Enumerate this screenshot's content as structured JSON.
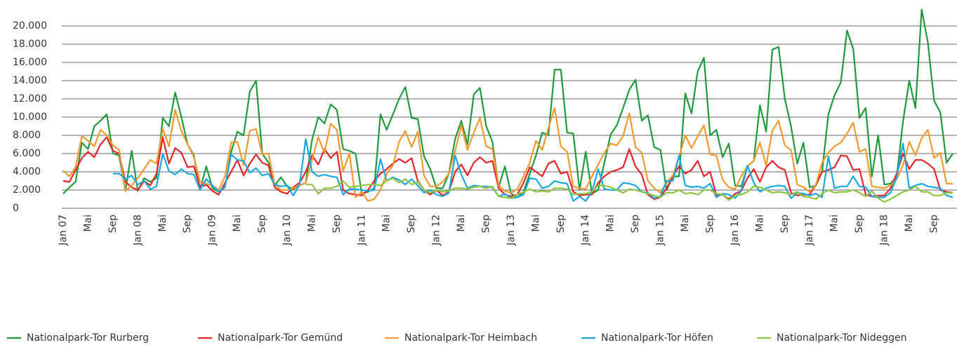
{
  "chart_data": {
    "type": "line",
    "categories": [
      "Jan 07",
      null,
      null,
      null,
      "Mai",
      null,
      null,
      null,
      "Sep",
      null,
      null,
      null,
      "Jan 08",
      null,
      null,
      null,
      "Mai",
      null,
      null,
      null,
      "Sep",
      null,
      null,
      null,
      "Jan 09",
      null,
      null,
      null,
      "Mai",
      null,
      null,
      null,
      "Sep",
      null,
      null,
      null,
      "Jan 10",
      null,
      null,
      null,
      "Mai",
      null,
      null,
      null,
      "Sep",
      null,
      null,
      null,
      "Jan 11",
      null,
      null,
      null,
      "Mai",
      null,
      null,
      null,
      "Sep",
      null,
      null,
      null,
      "Jan 12",
      null,
      null,
      null,
      "Mai",
      null,
      null,
      null,
      "Sep",
      null,
      null,
      null,
      "Jan 13",
      null,
      null,
      null,
      "Mai",
      null,
      null,
      null,
      "Sep",
      null,
      null,
      null,
      "Jan 14",
      null,
      null,
      null,
      "Mai",
      null,
      null,
      null,
      "Sep",
      null,
      null,
      null,
      "Jan 15",
      null,
      null,
      null,
      "Mai",
      null,
      null,
      null,
      "Sep",
      null,
      null,
      null,
      "Jan 16",
      null,
      null,
      null,
      "Mai",
      null,
      null,
      null,
      "Sep",
      null,
      null,
      null,
      "Jan 17",
      null,
      null,
      null,
      "Mai",
      null,
      null,
      null,
      "Sep",
      null,
      null,
      null,
      "Jan 18",
      null,
      null,
      null,
      "Mai",
      null,
      null,
      null,
      "Sep",
      null,
      null,
      null
    ],
    "series": [
      {
        "name": "Nationalpark-Tor Rurberg",
        "color": "#1f9a3e",
        "values": [
          1600,
          2300,
          2900,
          7200,
          6500,
          9000,
          9600,
          10300,
          6000,
          5800,
          1900,
          6300,
          1900,
          3300,
          2900,
          3300,
          9900,
          9000,
          12700,
          10000,
          7000,
          5800,
          2000,
          4600,
          2200,
          1800,
          2300,
          6200,
          8400,
          8000,
          12800,
          14000,
          6000,
          5000,
          2500,
          3400,
          2400,
          2100,
          2500,
          2800,
          7500,
          10000,
          9300,
          11400,
          10800,
          6500,
          6300,
          6000,
          1600,
          1800,
          2200,
          10300,
          8600,
          10300,
          12000,
          13300,
          9900,
          9800,
          5700,
          4300,
          2200,
          2200,
          3800,
          7600,
          9600,
          7000,
          12500,
          13200,
          9000,
          7300,
          2300,
          4600,
          1600,
          1200,
          1800,
          3800,
          5800,
          8300,
          8000,
          15200,
          15200,
          8300,
          8200,
          2000,
          6200,
          1600,
          2000,
          5000,
          8100,
          9100,
          11000,
          13000,
          14100,
          9600,
          10200,
          6700,
          6400,
          2000,
          3500,
          3500,
          12600,
          10400,
          15000,
          16500,
          8000,
          8600,
          5600,
          7100,
          2500,
          2400,
          4600,
          5200,
          11300,
          8400,
          17400,
          17700,
          12000,
          9000,
          4900,
          7200,
          2300,
          2500,
          4000,
          10300,
          12400,
          13800,
          19500,
          17500,
          9900,
          11000,
          3500,
          8000,
          2600,
          2700,
          3500,
          9500,
          14000,
          11000,
          21800,
          18200,
          11800,
          10500,
          5000,
          6000
        ]
      },
      {
        "name": "Nationalpark-Tor Gemünd",
        "color": "#e3262b",
        "values": [
          3000,
          2900,
          4200,
          5500,
          6200,
          5600,
          7000,
          7800,
          6300,
          6000,
          2900,
          2300,
          2000,
          3000,
          2500,
          3800,
          7800,
          4900,
          6600,
          6100,
          4500,
          4600,
          2300,
          2600,
          1900,
          1500,
          2800,
          4000,
          5300,
          3600,
          4900,
          5900,
          5000,
          4700,
          2300,
          1800,
          1600,
          2300,
          2800,
          4000,
          5800,
          4800,
          6500,
          5500,
          6200,
          2000,
          1600,
          1500,
          1400,
          2000,
          3000,
          3800,
          4300,
          4900,
          5400,
          5000,
          5500,
          3000,
          2000,
          1500,
          2000,
          1400,
          1800,
          4000,
          4800,
          3600,
          5000,
          5600,
          5000,
          5200,
          2200,
          1500,
          1300,
          1500,
          2800,
          4500,
          4000,
          3500,
          4900,
          5200,
          3800,
          4000,
          1800,
          1400,
          1500,
          1500,
          2800,
          3500,
          4000,
          4200,
          4500,
          6500,
          4600,
          3700,
          1500,
          1000,
          1200,
          2200,
          3500,
          4600,
          3800,
          4200,
          5200,
          3500,
          4000,
          1400,
          1500,
          1000,
          1600,
          1900,
          3300,
          4300,
          2900,
          4500,
          5200,
          4500,
          4200,
          1700,
          1400,
          1500,
          1500,
          2600,
          4000,
          4200,
          4500,
          5800,
          5700,
          4200,
          4300,
          1500,
          1300,
          1400,
          1400,
          2200,
          3800,
          6000,
          4300,
          5300,
          5300,
          4900,
          4300,
          2000,
          1800,
          1700
        ]
      },
      {
        "name": "Nationalpark-Tor Heimbach",
        "color": "#f39a2e",
        "values": [
          4100,
          3500,
          4500,
          7900,
          7400,
          6800,
          8600,
          8000,
          6900,
          6400,
          1900,
          2500,
          3300,
          4300,
          5300,
          4900,
          8700,
          6800,
          10800,
          8500,
          7000,
          5600,
          2900,
          2700,
          2500,
          2000,
          3500,
          7200,
          7300,
          4700,
          8500,
          8700,
          5900,
          6000,
          2600,
          2000,
          2000,
          2200,
          2500,
          2800,
          5300,
          7800,
          6100,
          9300,
          8600,
          4100,
          6000,
          1200,
          1800,
          800,
          1000,
          2000,
          3800,
          4700,
          7300,
          8500,
          6700,
          8400,
          3600,
          2400,
          2400,
          2900,
          3800,
          6300,
          9100,
          6400,
          8300,
          9900,
          6800,
          6500,
          2500,
          1900,
          1700,
          2100,
          3500,
          5000,
          7400,
          6400,
          8800,
          11000,
          6800,
          6200,
          2400,
          2200,
          2100,
          3500,
          4800,
          6100,
          7100,
          6900,
          7900,
          10400,
          6700,
          6100,
          3000,
          2200,
          1700,
          2800,
          3600,
          5600,
          8000,
          6600,
          7900,
          9100,
          5900,
          5800,
          3100,
          2300,
          2100,
          3500,
          4600,
          5200,
          7200,
          4700,
          8500,
          9600,
          6900,
          6400,
          2600,
          2300,
          1800,
          2600,
          5000,
          6100,
          6800,
          7200,
          8200,
          9400,
          6200,
          6500,
          2400,
          2300,
          2200,
          2500,
          3200,
          4700,
          7300,
          5800,
          7700,
          8600,
          5500,
          6100,
          2700,
          2700
        ]
      },
      {
        "name": "Nationalpark-Tor Höfen",
        "color": "#1ba8e0",
        "values": [
          null,
          null,
          null,
          null,
          null,
          null,
          null,
          null,
          3800,
          3800,
          3200,
          3600,
          2600,
          3000,
          2100,
          2400,
          6000,
          4100,
          3700,
          4300,
          3800,
          3700,
          2000,
          3200,
          2500,
          1800,
          2400,
          5900,
          5300,
          5200,
          3900,
          4400,
          3600,
          3800,
          2600,
          2400,
          2500,
          1400,
          2600,
          7600,
          4000,
          3500,
          3700,
          3500,
          3400,
          1500,
          2100,
          2100,
          2000,
          1900,
          2000,
          5400,
          3000,
          3400,
          3100,
          2600,
          3200,
          2500,
          1700,
          2000,
          1500,
          1300,
          1700,
          5800,
          3700,
          2200,
          2500,
          2400,
          2400,
          2300,
          1300,
          1600,
          1100,
          1200,
          1500,
          3300,
          3200,
          2200,
          2400,
          3000,
          2800,
          2700,
          800,
          1300,
          800,
          1800,
          4300,
          2100,
          2000,
          2000,
          2800,
          2700,
          2500,
          1800,
          1700,
          1100,
          1300,
          3000,
          3000,
          5800,
          2500,
          2300,
          2400,
          2200,
          2700,
          1200,
          1600,
          1500,
          1100,
          1900,
          4700,
          2800,
          1800,
          2200,
          2400,
          2500,
          2400,
          1100,
          1700,
          1600,
          1400,
          1600,
          1200,
          5700,
          2200,
          2400,
          2400,
          3500,
          2400,
          2300,
          1300,
          1200,
          1200,
          1700,
          3400,
          7100,
          2200,
          2500,
          2700,
          2400,
          2300,
          2200,
          1400,
          1200
        ]
      },
      {
        "name": "Nationalpark-Tor Nideggen",
        "color": "#8dc63f",
        "values": [
          null,
          null,
          null,
          null,
          null,
          null,
          null,
          null,
          null,
          null,
          null,
          null,
          null,
          null,
          null,
          null,
          null,
          null,
          null,
          null,
          null,
          null,
          null,
          null,
          null,
          null,
          null,
          null,
          null,
          null,
          null,
          null,
          null,
          null,
          null,
          null,
          null,
          null,
          null,
          2600,
          2600,
          1600,
          2200,
          2200,
          2400,
          3000,
          2300,
          2400,
          2500,
          2600,
          2600,
          2500,
          3000,
          3300,
          2800,
          3200,
          2600,
          2900,
          2000,
          1700,
          2000,
          1800,
          1900,
          2200,
          2200,
          2100,
          2300,
          2400,
          2200,
          2400,
          1300,
          1200,
          1100,
          1500,
          1800,
          2100,
          1800,
          1900,
          1800,
          2200,
          2200,
          2100,
          1500,
          1600,
          1600,
          1800,
          2500,
          2500,
          2300,
          2000,
          1700,
          2100,
          2000,
          1800,
          1600,
          1400,
          1200,
          1700,
          1700,
          2000,
          1600,
          1700,
          1500,
          2000,
          2000,
          1600,
          1500,
          900,
          1400,
          1500,
          1800,
          2400,
          2300,
          2000,
          1700,
          1800,
          1700,
          1500,
          1800,
          1300,
          1200,
          1000,
          1600,
          2000,
          1700,
          1800,
          1800,
          2000,
          1700,
          1300,
          1900,
          1100,
          700,
          1000,
          1400,
          1800,
          2000,
          2400,
          1800,
          1800,
          1400,
          1400,
          1700,
          1700
        ]
      }
    ],
    "ylim": [
      0,
      22000
    ],
    "yticks": [
      0,
      {
        "value": 2000,
        "label": "2.000"
      },
      {
        "value": 4000,
        "label": "4.000"
      },
      {
        "value": 6000,
        "label": "6.000"
      },
      {
        "value": 8000,
        "label": "8.000"
      },
      {
        "value": 10000,
        "label": "10.000"
      },
      {
        "value": 12000,
        "label": "12.000"
      },
      {
        "value": 14000,
        "label": "14.000"
      },
      {
        "value": 16000,
        "label": "16.000"
      },
      {
        "value": 18000,
        "label": "18.000"
      },
      {
        "value": 20000,
        "label": "20.000"
      }
    ],
    "grid": true,
    "legend": "bottom"
  }
}
